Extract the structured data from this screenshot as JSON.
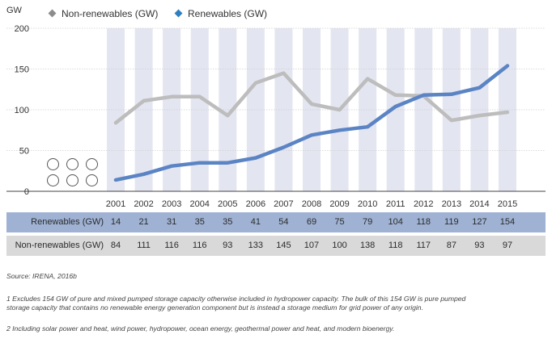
{
  "chart_data": {
    "type": "line",
    "ylabel": "GW",
    "ylim": [
      0,
      200
    ],
    "yticks": [
      0,
      50,
      100,
      150,
      200
    ],
    "categories": [
      "2001",
      "2002",
      "2003",
      "2004",
      "2005",
      "2006",
      "2007",
      "2008",
      "2009",
      "2010",
      "2011",
      "2012",
      "2013",
      "2014",
      "2015"
    ],
    "series": [
      {
        "name": "Non-renewables (GW)",
        "legend": "Non-renewables (GW)",
        "color": "#bdbdbd",
        "marker_color": "#8c8c8c",
        "values": [
          84,
          111,
          116,
          116,
          93,
          133,
          145,
          107,
          100,
          138,
          118,
          117,
          87,
          93,
          97
        ]
      },
      {
        "name": "Renewables (GW)",
        "legend": "Renewables (GW)",
        "color": "#5b84c4",
        "marker_color": "#2f7fc0",
        "values": [
          14,
          21,
          31,
          35,
          35,
          41,
          54,
          69,
          75,
          79,
          104,
          118,
          119,
          127,
          154
        ]
      }
    ],
    "grid": "alternating-column-bands",
    "legend_position": "top-left"
  },
  "table": {
    "rows": [
      {
        "label": "Renewables (GW)",
        "values": [
          "14",
          "21",
          "31",
          "35",
          "35",
          "41",
          "54",
          "69",
          "75",
          "79",
          "104",
          "118",
          "119",
          "127",
          "154"
        ]
      },
      {
        "label": "Non-renewables (GW)",
        "values": [
          "84",
          "111",
          "116",
          "116",
          "93",
          "133",
          "145",
          "107",
          "100",
          "138",
          "118",
          "117",
          "87",
          "93",
          "97"
        ]
      }
    ]
  },
  "source": "Source: IRENA, 2016b",
  "notes": [
    "1 Excludes 154 GW of pure and mixed pumped storage capacity otherwise included in hydropower capacity. The bulk of this 154 GW is pure pumped storage capacity that contains no renewable energy generation component but is instead a storage medium for grid power of any origin.",
    "2 Including solar power and heat, wind power, hydropower, ocean energy, geothermal power and heat, and modern bioenergy."
  ],
  "icons": [
    {
      "name": "bioenergy-icon",
      "color": "#6b8e3a"
    },
    {
      "name": "geothermal-icon",
      "color": "#c0392b"
    },
    {
      "name": "hydropower-icon",
      "color": "#2a9fc8"
    },
    {
      "name": "ocean-energy-icon",
      "color": "#1f5fa8"
    },
    {
      "name": "solar-icon",
      "color": "#f2b21b"
    },
    {
      "name": "wind-icon",
      "color": "#9e9e9e"
    }
  ]
}
